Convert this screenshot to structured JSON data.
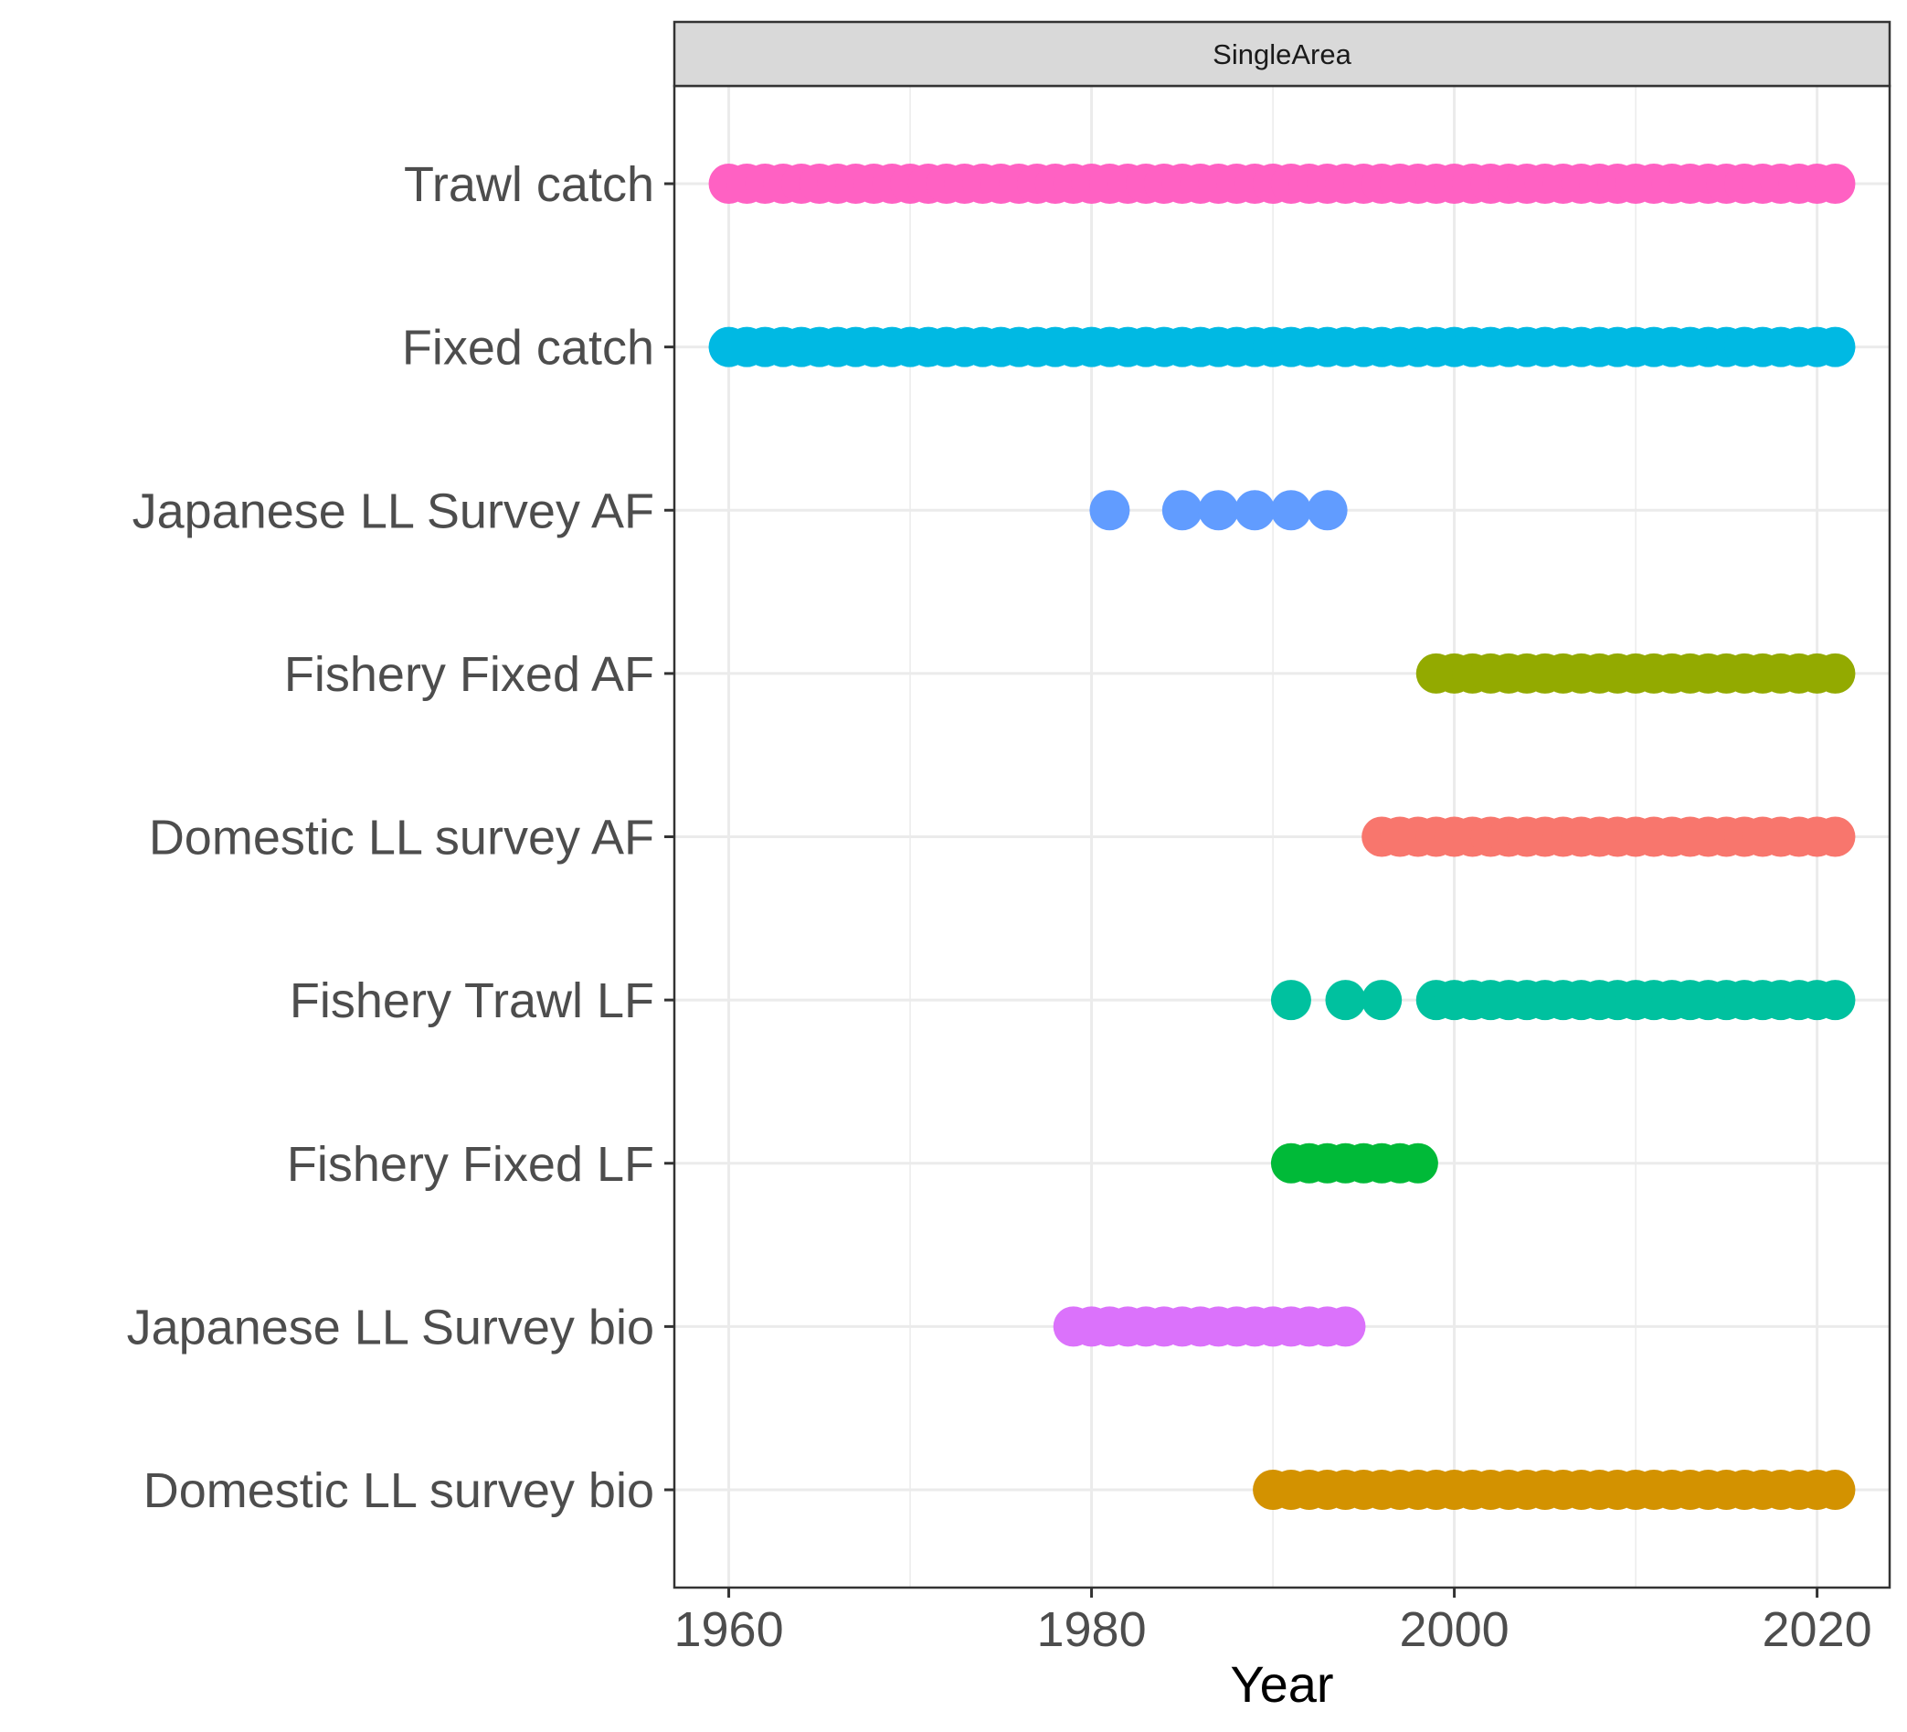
{
  "chart_data": {
    "type": "scatter",
    "facet": "SingleArea",
    "xlabel": "Year",
    "ylabel": "",
    "xlim": [
      1957,
      2024
    ],
    "x_ticks": [
      1960,
      1980,
      2000,
      2020
    ],
    "grid": true,
    "legend": "none",
    "series": [
      {
        "name": "Trawl catch",
        "color": "#FF61C3",
        "years": [
          1960,
          1961,
          1962,
          1963,
          1964,
          1965,
          1966,
          1967,
          1968,
          1969,
          1970,
          1971,
          1972,
          1973,
          1974,
          1975,
          1976,
          1977,
          1978,
          1979,
          1980,
          1981,
          1982,
          1983,
          1984,
          1985,
          1986,
          1987,
          1988,
          1989,
          1990,
          1991,
          1992,
          1993,
          1994,
          1995,
          1996,
          1997,
          1998,
          1999,
          2000,
          2001,
          2002,
          2003,
          2004,
          2005,
          2006,
          2007,
          2008,
          2009,
          2010,
          2011,
          2012,
          2013,
          2014,
          2015,
          2016,
          2017,
          2018,
          2019,
          2020,
          2021
        ]
      },
      {
        "name": "Fixed catch",
        "color": "#00B9E3",
        "years": [
          1960,
          1961,
          1962,
          1963,
          1964,
          1965,
          1966,
          1967,
          1968,
          1969,
          1970,
          1971,
          1972,
          1973,
          1974,
          1975,
          1976,
          1977,
          1978,
          1979,
          1980,
          1981,
          1982,
          1983,
          1984,
          1985,
          1986,
          1987,
          1988,
          1989,
          1990,
          1991,
          1992,
          1993,
          1994,
          1995,
          1996,
          1997,
          1998,
          1999,
          2000,
          2001,
          2002,
          2003,
          2004,
          2005,
          2006,
          2007,
          2008,
          2009,
          2010,
          2011,
          2012,
          2013,
          2014,
          2015,
          2016,
          2017,
          2018,
          2019,
          2020,
          2021
        ]
      },
      {
        "name": "Japanese LL Survey AF",
        "color": "#619CFF",
        "years": [
          1981,
          1985,
          1987,
          1989,
          1991,
          1993
        ]
      },
      {
        "name": "Fishery Fixed AF",
        "color": "#93AA00",
        "years": [
          1999,
          2000,
          2001,
          2002,
          2003,
          2004,
          2005,
          2006,
          2007,
          2008,
          2009,
          2010,
          2011,
          2012,
          2013,
          2014,
          2015,
          2016,
          2017,
          2018,
          2019,
          2020,
          2021
        ]
      },
      {
        "name": "Domestic LL survey AF",
        "color": "#F8766D",
        "years": [
          1996,
          1997,
          1998,
          1999,
          2000,
          2001,
          2002,
          2003,
          2004,
          2005,
          2006,
          2007,
          2008,
          2009,
          2010,
          2011,
          2012,
          2013,
          2014,
          2015,
          2016,
          2017,
          2018,
          2019,
          2020,
          2021
        ]
      },
      {
        "name": "Fishery Trawl LF",
        "color": "#00C19F",
        "years": [
          1991,
          1994,
          1996,
          1999,
          2000,
          2001,
          2002,
          2003,
          2004,
          2005,
          2006,
          2007,
          2008,
          2009,
          2010,
          2011,
          2012,
          2013,
          2014,
          2015,
          2016,
          2017,
          2018,
          2019,
          2020,
          2021
        ]
      },
      {
        "name": "Fishery Fixed LF",
        "color": "#00BA38",
        "years": [
          1991,
          1992,
          1993,
          1994,
          1995,
          1996,
          1997,
          1998
        ]
      },
      {
        "name": "Japanese LL Survey bio",
        "color": "#DB72FB",
        "years": [
          1979,
          1980,
          1981,
          1982,
          1983,
          1984,
          1985,
          1986,
          1987,
          1988,
          1989,
          1990,
          1991,
          1992,
          1993,
          1994
        ]
      },
      {
        "name": "Domestic LL survey bio",
        "color": "#D39200",
        "years": [
          1990,
          1991,
          1992,
          1993,
          1994,
          1995,
          1996,
          1997,
          1998,
          1999,
          2000,
          2001,
          2002,
          2003,
          2004,
          2005,
          2006,
          2007,
          2008,
          2009,
          2010,
          2011,
          2012,
          2013,
          2014,
          2015,
          2016,
          2017,
          2018,
          2019,
          2020,
          2021
        ]
      }
    ]
  }
}
